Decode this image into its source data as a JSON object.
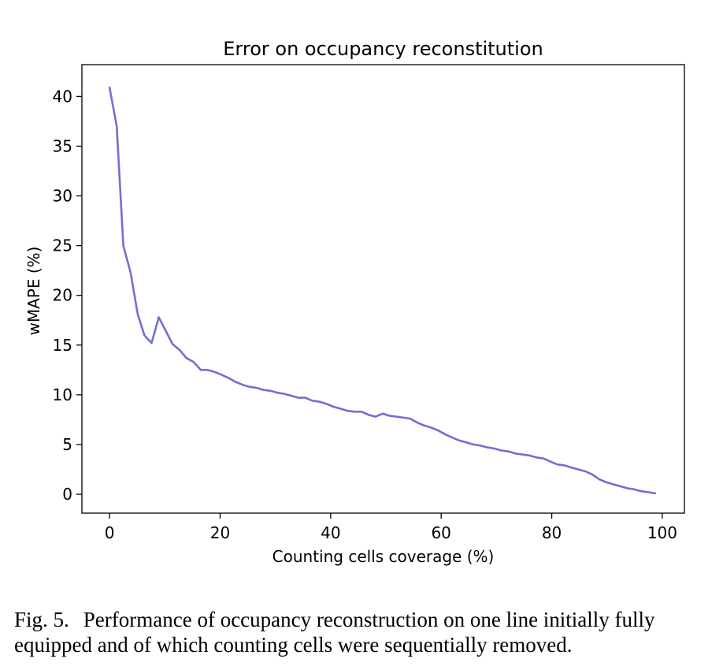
{
  "chart_data": {
    "type": "line",
    "title": "Error on occupancy reconstitution",
    "xlabel": "Counting cells coverage (%)",
    "ylabel": "wMAPE (%)",
    "xlim": [
      -5,
      104
    ],
    "ylim": [
      -1.9,
      43.2
    ],
    "xticks": [
      0,
      20,
      40,
      60,
      80,
      100
    ],
    "yticks": [
      0,
      5,
      10,
      15,
      20,
      25,
      30,
      35,
      40
    ],
    "grid": false,
    "line_color": "#7070d0",
    "series": [
      {
        "name": "wMAPE",
        "x": [
          0,
          1.3,
          2.5,
          3.8,
          5.1,
          6.3,
          7.6,
          8.9,
          10.1,
          11.4,
          12.7,
          13.9,
          15.2,
          16.5,
          17.7,
          19.0,
          20.3,
          21.5,
          22.8,
          24.1,
          25.3,
          26.6,
          27.8,
          29.1,
          30.4,
          31.6,
          32.9,
          34.2,
          35.4,
          36.7,
          38.0,
          39.2,
          40.5,
          41.8,
          43.0,
          44.3,
          45.6,
          46.8,
          48.1,
          49.4,
          50.6,
          51.9,
          53.2,
          54.4,
          55.7,
          57.0,
          58.2,
          59.5,
          60.8,
          62.0,
          63.3,
          64.6,
          65.8,
          67.1,
          68.4,
          69.6,
          70.9,
          72.2,
          73.4,
          74.7,
          75.9,
          77.2,
          78.5,
          79.7,
          81.0,
          82.3,
          83.5,
          84.8,
          86.1,
          87.3,
          88.6,
          89.9,
          91.1,
          92.4,
          93.7,
          94.9,
          96.2,
          97.5,
          98.7
        ],
        "y": [
          40.9,
          37.0,
          25.0,
          22.3,
          18.1,
          16.0,
          15.2,
          17.8,
          16.5,
          15.1,
          14.5,
          13.7,
          13.3,
          12.5,
          12.5,
          12.3,
          12.0,
          11.7,
          11.3,
          11.0,
          10.8,
          10.7,
          10.5,
          10.4,
          10.2,
          10.1,
          9.9,
          9.7,
          9.7,
          9.4,
          9.3,
          9.1,
          8.8,
          8.6,
          8.4,
          8.3,
          8.3,
          8.0,
          7.8,
          8.1,
          7.9,
          7.8,
          7.7,
          7.6,
          7.2,
          6.9,
          6.7,
          6.4,
          6.0,
          5.7,
          5.4,
          5.2,
          5.0,
          4.9,
          4.7,
          4.6,
          4.4,
          4.3,
          4.1,
          4.0,
          3.9,
          3.7,
          3.6,
          3.3,
          3.0,
          2.9,
          2.7,
          2.5,
          2.3,
          2.0,
          1.5,
          1.2,
          1.0,
          0.8,
          0.6,
          0.5,
          0.3,
          0.2,
          0.1
        ]
      }
    ]
  },
  "caption": {
    "label": "Fig. 5.",
    "text": "Performance of occupancy reconstruction on one line initially fully equipped and of which counting cells were sequentially removed."
  }
}
